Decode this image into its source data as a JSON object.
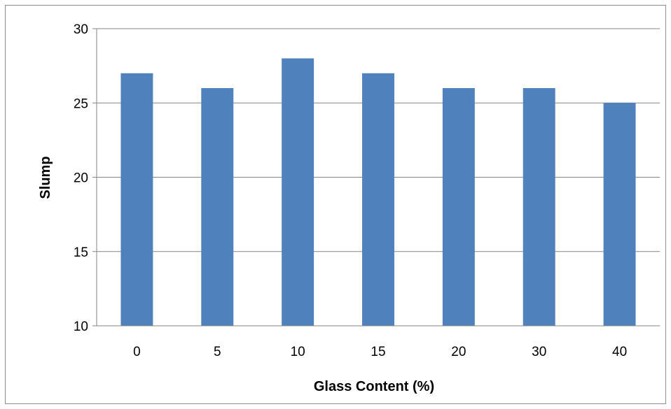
{
  "chart_data": {
    "type": "bar",
    "title": "",
    "xlabel": "Glass Content (%)",
    "ylabel": "Slump",
    "categories": [
      "0",
      "5",
      "10",
      "15",
      "20",
      "30",
      "40"
    ],
    "values": [
      27,
      26,
      28,
      27,
      26,
      26,
      25
    ],
    "ylim": [
      10,
      30
    ],
    "yticks": [
      "10",
      "15",
      "20",
      "25",
      "30"
    ],
    "ytick_values": [
      10,
      15,
      20,
      25,
      30
    ],
    "grid": true,
    "legend": "none",
    "bar_color": "#4f81bd",
    "grid_color": "#868686"
  }
}
